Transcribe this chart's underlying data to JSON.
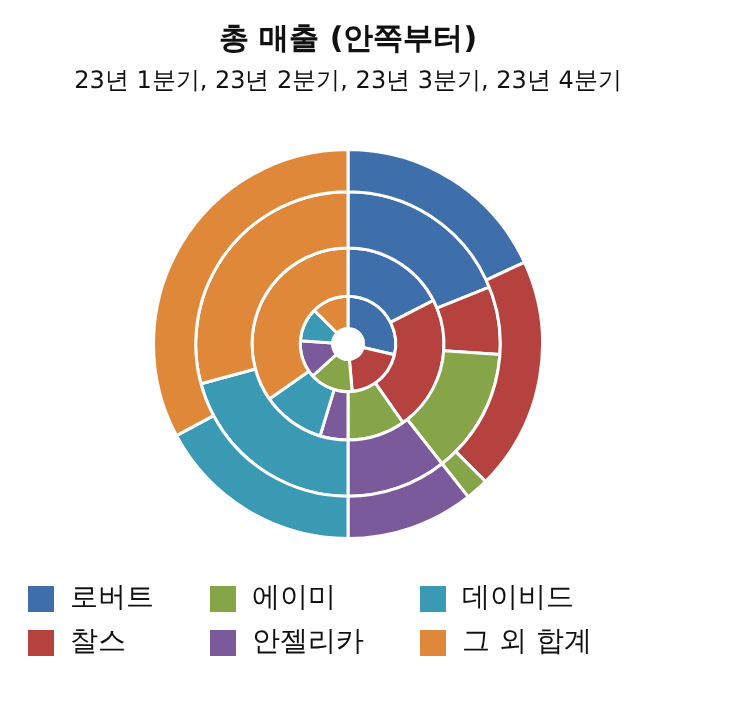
{
  "chart_data": {
    "type": "donut",
    "title": "총 매출 (안쪽부터)",
    "subtitle": "23년 1분기, 23년 2분기, 23년 3분기, 23년 4분기",
    "categories": [
      "로버트",
      "찰스",
      "에이미",
      "안젤리카",
      "데이비드",
      "그 외 합계"
    ],
    "colors": [
      "#3f6faa",
      "#b5423f",
      "#86a548",
      "#7b5a9c",
      "#3a9ab3",
      "#e0883a"
    ],
    "series": [
      {
        "values": [
          28.6,
          20,
          14.7,
          12.8,
          11.4,
          12.5
        ]
      },
      {
        "values": [
          17.5,
          22.8,
          9.7,
          4.7,
          10.6,
          34.7
        ]
      },
      {
        "values": [
          18.9,
          7.2,
          13.3,
          10.6,
          20.8,
          29.2
        ]
      },
      {
        "values": [
          18.1,
          19.4,
          1.9,
          10.6,
          17.2,
          32.8
        ]
      }
    ],
    "legend": "bottom"
  }
}
